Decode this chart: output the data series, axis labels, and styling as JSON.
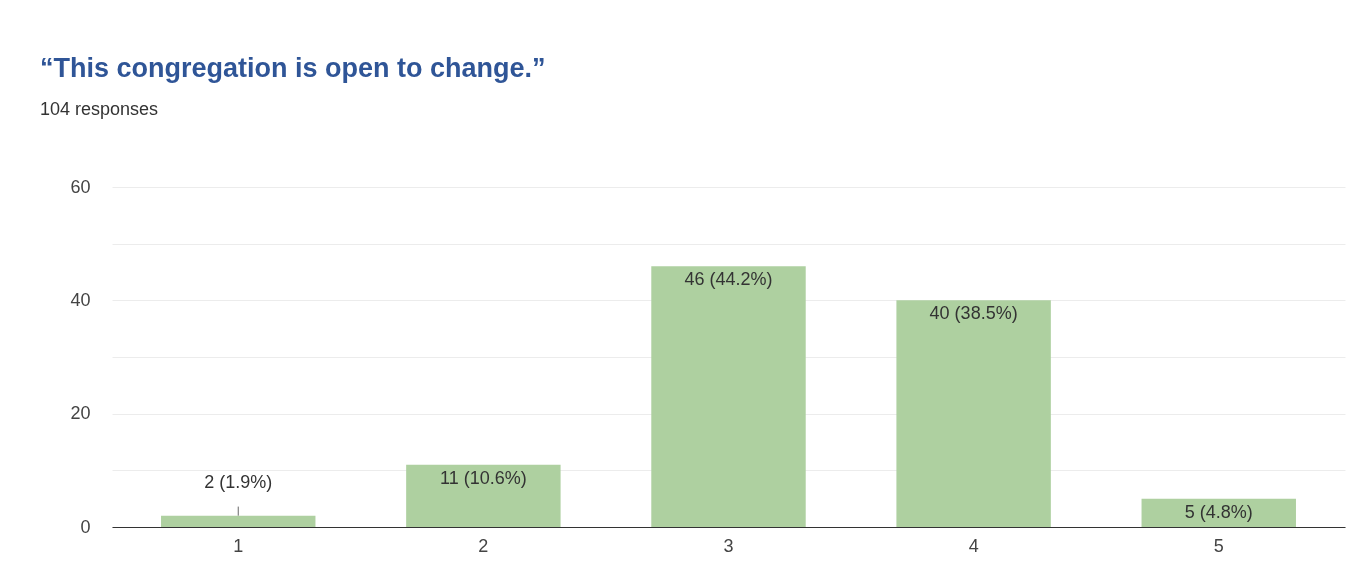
{
  "chart_data": {
    "type": "bar",
    "title": "“This congregation is open to change.”",
    "subtitle": "104 responses",
    "categories": [
      "1",
      "2",
      "3",
      "4",
      "5"
    ],
    "values": [
      2,
      11,
      46,
      40,
      5
    ],
    "value_labels": [
      "2 (1.9%)",
      "11 (10.6%)",
      "46 (44.2%)",
      "40 (38.5%)",
      "5 (4.8%)"
    ],
    "color": "#aed0a0",
    "ylim": [
      0,
      60
    ],
    "yticks": [
      0,
      {
        "value": 10,
        "label": null
      },
      20,
      {
        "value": 30,
        "label": null
      },
      40,
      {
        "value": 50,
        "label": null
      },
      60
    ],
    "grid": "y"
  }
}
